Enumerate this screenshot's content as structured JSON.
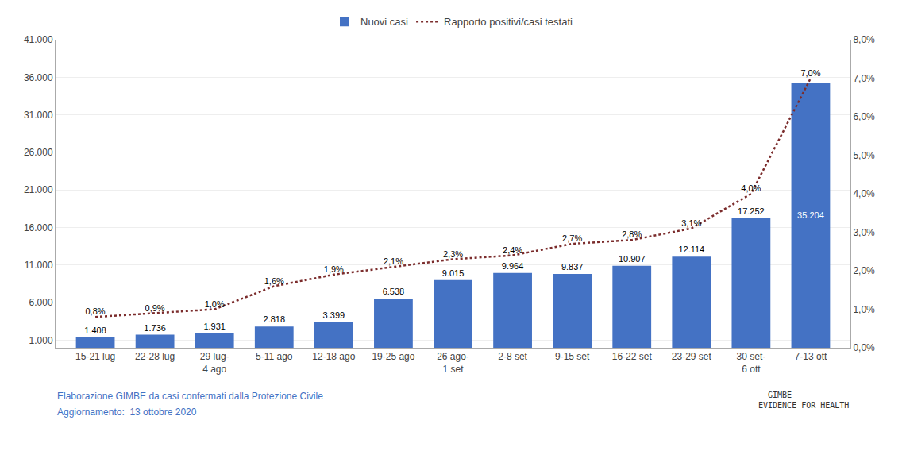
{
  "chart_data": {
    "type": "bar",
    "categories": [
      "15-21 lug",
      "22-28 lug",
      "29 lug-\n4 ago",
      "5-11 ago",
      "12-18 ago",
      "19-25 ago",
      "26 ago-\n1 set",
      "2-8 set",
      "9-15 set",
      "16-22 set",
      "23-29 set",
      "30 set-\n6 ott",
      "7-13 ott"
    ],
    "series": [
      {
        "name": "Nuovi casi",
        "type": "bar",
        "color": "#4472C4",
        "values": [
          1408,
          1736,
          1931,
          2818,
          3399,
          6538,
          9015,
          9964,
          9837,
          10907,
          12114,
          17252,
          35204
        ],
        "value_labels": [
          "1.408",
          "1.736",
          "1.931",
          "2.818",
          "3.399",
          "6.538",
          "9.015",
          "9.964",
          "9.837",
          "10.907",
          "12.114",
          "17.252",
          "35.204"
        ]
      },
      {
        "name": "Rapporto positivi/casi testati",
        "type": "line",
        "axis": "y2",
        "color": "#7B2C2C",
        "line_style": "dotted",
        "values": [
          0.8,
          0.9,
          1.0,
          1.6,
          1.9,
          2.1,
          2.3,
          2.4,
          2.7,
          2.8,
          3.1,
          4.0,
          7.0
        ],
        "value_labels": [
          "0,8%",
          "0,9%",
          "1,0%",
          "1,6%",
          "1,9%",
          "2,1%",
          "2,3%",
          "2,4%",
          "2,7%",
          "2,8%",
          "3,1%",
          "4,0%",
          "7,0%"
        ]
      }
    ],
    "ylim": [
      0,
      41000
    ],
    "yticks": [
      {
        "value": 1000,
        "label": "1.000"
      },
      {
        "value": 6000,
        "label": "6.000"
      },
      {
        "value": 11000,
        "label": "11.000"
      },
      {
        "value": 16000,
        "label": "16.000"
      },
      {
        "value": 21000,
        "label": "21.000"
      },
      {
        "value": 26000,
        "label": "26.000"
      },
      {
        "value": 31000,
        "label": "31.000"
      },
      {
        "value": 36000,
        "label": "36.000"
      },
      {
        "value": 41000,
        "label": "41.000"
      }
    ],
    "y2lim": [
      0.0,
      8.0
    ],
    "y2ticks": [
      {
        "value": 0.0,
        "label": "0,0%"
      },
      {
        "value": 1.0,
        "label": "1,0%"
      },
      {
        "value": 2.0,
        "label": "2,0%"
      },
      {
        "value": 3.0,
        "label": "3,0%"
      },
      {
        "value": 4.0,
        "label": "4,0%"
      },
      {
        "value": 5.0,
        "label": "5,0%"
      },
      {
        "value": 6.0,
        "label": "6,0%"
      },
      {
        "value": 7.0,
        "label": "7,0%"
      },
      {
        "value": 8.0,
        "label": "8,0%"
      }
    ],
    "grid": true,
    "data_labels": true,
    "legend": "top",
    "annotations": [
      {
        "text": "Elaborazione GIMBE da casi confermati dalla Protezione Civile",
        "color": "#4472C4"
      },
      {
        "text": "Aggiornamento:  13 ottobre 2020",
        "color": "#4472C4"
      },
      {
        "text": "  GIMBE\nEVIDENCE FOR HEALTH",
        "color": "#333333"
      }
    ]
  }
}
